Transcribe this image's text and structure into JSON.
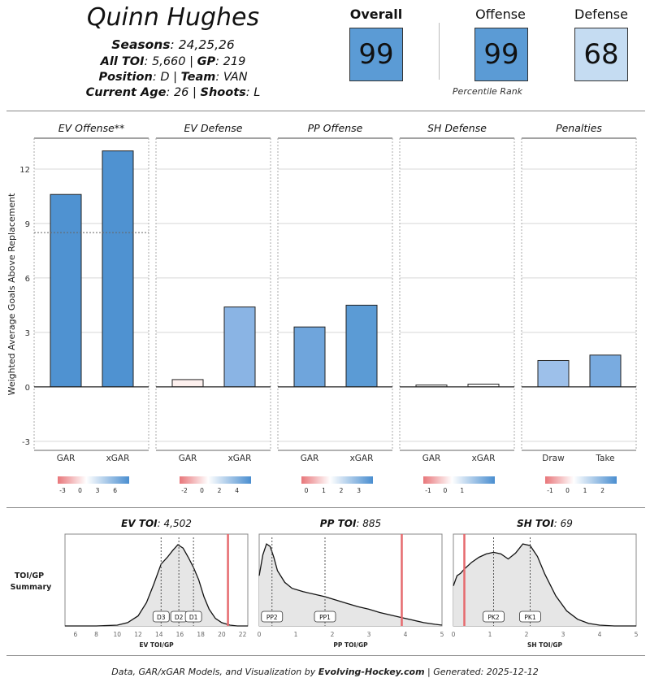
{
  "player": {
    "name": "Quinn Hughes",
    "seasons_label": "Seasons",
    "seasons": "24,25,26",
    "toi_label": "All TOI",
    "toi": "5,660",
    "gp_label": "GP",
    "gp": "219",
    "position_label": "Position",
    "position": "D",
    "team_label": "Team",
    "team": "VAN",
    "age_label": "Current Age",
    "age": "26",
    "shoots_label": "Shoots",
    "shoots": "L"
  },
  "scores": {
    "overall_label": "Overall",
    "overall": "99",
    "overall_color": "#5b9bd5",
    "offense_label": "Offense",
    "offense": "99",
    "offense_color": "#5b9bd5",
    "defense_label": "Defense",
    "defense": "68",
    "defense_color": "#c5dcf2",
    "percentile_label": "Percentile Rank"
  },
  "chart_data": [
    {
      "type": "bar",
      "ylabel": "Weighted Average Goals Above Replacement",
      "ylim": [
        -3.5,
        13.7
      ],
      "yticks": [
        -3,
        0,
        3,
        6,
        9,
        12
      ],
      "grid": true,
      "panels": [
        {
          "title": "EV Offense**",
          "categories": [
            "GAR",
            "xGAR"
          ],
          "values": [
            10.6,
            13.0
          ],
          "colors": [
            "#4f92d1",
            "#4f92d1"
          ],
          "reference_line": 8.5,
          "legend_ticks": [
            "-3",
            "0",
            "3",
            "6"
          ]
        },
        {
          "title": "EV Defense",
          "categories": [
            "GAR",
            "xGAR"
          ],
          "values": [
            0.4,
            4.4
          ],
          "colors": [
            "#fdf0ee",
            "#8ab4e4"
          ],
          "legend_ticks": [
            "-2",
            "0",
            "2",
            "4"
          ]
        },
        {
          "title": "PP Offense",
          "categories": [
            "GAR",
            "xGAR"
          ],
          "values": [
            3.3,
            4.5
          ],
          "colors": [
            "#6fa5dc",
            "#5b9bd5"
          ],
          "legend_ticks": [
            "0",
            "1",
            "2",
            "3"
          ]
        },
        {
          "title": "SH Defense",
          "categories": [
            "GAR",
            "xGAR"
          ],
          "values": [
            0.1,
            0.15
          ],
          "colors": [
            "#ffffff",
            "#ffffff"
          ],
          "legend_ticks": [
            "-1",
            "0",
            "1"
          ]
        },
        {
          "title": "Penalties",
          "categories": [
            "Draw",
            "Take"
          ],
          "values": [
            1.45,
            1.75
          ],
          "colors": [
            "#9dc0ea",
            "#79abe0"
          ],
          "legend_ticks": [
            "-1",
            "0",
            "1",
            "2"
          ]
        }
      ]
    },
    {
      "type": "area",
      "side_label": "TOI/GP Summary",
      "panels": [
        {
          "title_label": "EV TOI",
          "title_value": "4,502",
          "xlabel": "EV TOI/GP",
          "xlim": [
            5,
            22.5
          ],
          "xticks": [
            6,
            8,
            10,
            12,
            14,
            16,
            18,
            20,
            22
          ],
          "x": [
            5,
            8,
            10,
            11,
            12,
            12.8,
            13.5,
            14.2,
            14.8,
            15.3,
            15.8,
            16.3,
            16.8,
            17.3,
            17.8,
            18.3,
            18.8,
            19.4,
            20,
            20.8,
            21.5,
            22.5
          ],
          "y": [
            0,
            0,
            0.01,
            0.04,
            0.12,
            0.28,
            0.5,
            0.74,
            0.82,
            0.9,
            0.97,
            0.93,
            0.82,
            0.7,
            0.55,
            0.35,
            0.2,
            0.09,
            0.04,
            0.01,
            0,
            0
          ],
          "markers": [
            {
              "label": "D3",
              "x": 14.2
            },
            {
              "label": "D2",
              "x": 15.9
            },
            {
              "label": "D1",
              "x": 17.3
            }
          ],
          "player_value": 20.6
        },
        {
          "title_label": "PP TOI",
          "title_value": "885",
          "xlabel": "PP TOI/GP",
          "xlim": [
            0,
            5
          ],
          "xticks": [
            0,
            1,
            2,
            3,
            4,
            5
          ],
          "x": [
            0,
            0.1,
            0.2,
            0.3,
            0.4,
            0.5,
            0.7,
            0.9,
            1.2,
            1.5,
            1.8,
            2.1,
            2.4,
            2.7,
            3.0,
            3.3,
            3.6,
            3.9,
            4.2,
            4.5,
            4.8,
            5.0
          ],
          "y": [
            0.6,
            0.85,
            0.98,
            0.95,
            0.82,
            0.66,
            0.52,
            0.45,
            0.41,
            0.38,
            0.35,
            0.31,
            0.27,
            0.23,
            0.2,
            0.16,
            0.13,
            0.1,
            0.07,
            0.04,
            0.02,
            0.01
          ],
          "markers": [
            {
              "label": "PP2",
              "x": 0.35
            },
            {
              "label": "PP1",
              "x": 1.8
            }
          ],
          "player_value": 3.9
        },
        {
          "title_label": "SH TOI",
          "title_value": "69",
          "xlabel": "SH TOI/GP",
          "xlim": [
            0,
            5
          ],
          "xticks": [
            0,
            1,
            2,
            3,
            4,
            5
          ],
          "x": [
            0,
            0.1,
            0.2,
            0.3,
            0.5,
            0.7,
            0.9,
            1.1,
            1.3,
            1.5,
            1.7,
            1.9,
            2.1,
            2.3,
            2.5,
            2.8,
            3.1,
            3.4,
            3.7,
            4.0,
            4.4,
            5.0
          ],
          "y": [
            0.48,
            0.6,
            0.63,
            0.68,
            0.76,
            0.82,
            0.86,
            0.88,
            0.86,
            0.8,
            0.87,
            0.98,
            0.96,
            0.83,
            0.62,
            0.36,
            0.18,
            0.08,
            0.03,
            0.01,
            0,
            0
          ],
          "markers": [
            {
              "label": "PK2",
              "x": 1.1
            },
            {
              "label": "PK1",
              "x": 2.1
            }
          ],
          "player_value": 0.3
        }
      ]
    }
  ],
  "footer": {
    "prefix": "Data, GAR/xGAR Models, and Visualization by ",
    "brand": "Evolving-Hockey.com",
    "suffix": " | Generated: 2025-12-12"
  }
}
